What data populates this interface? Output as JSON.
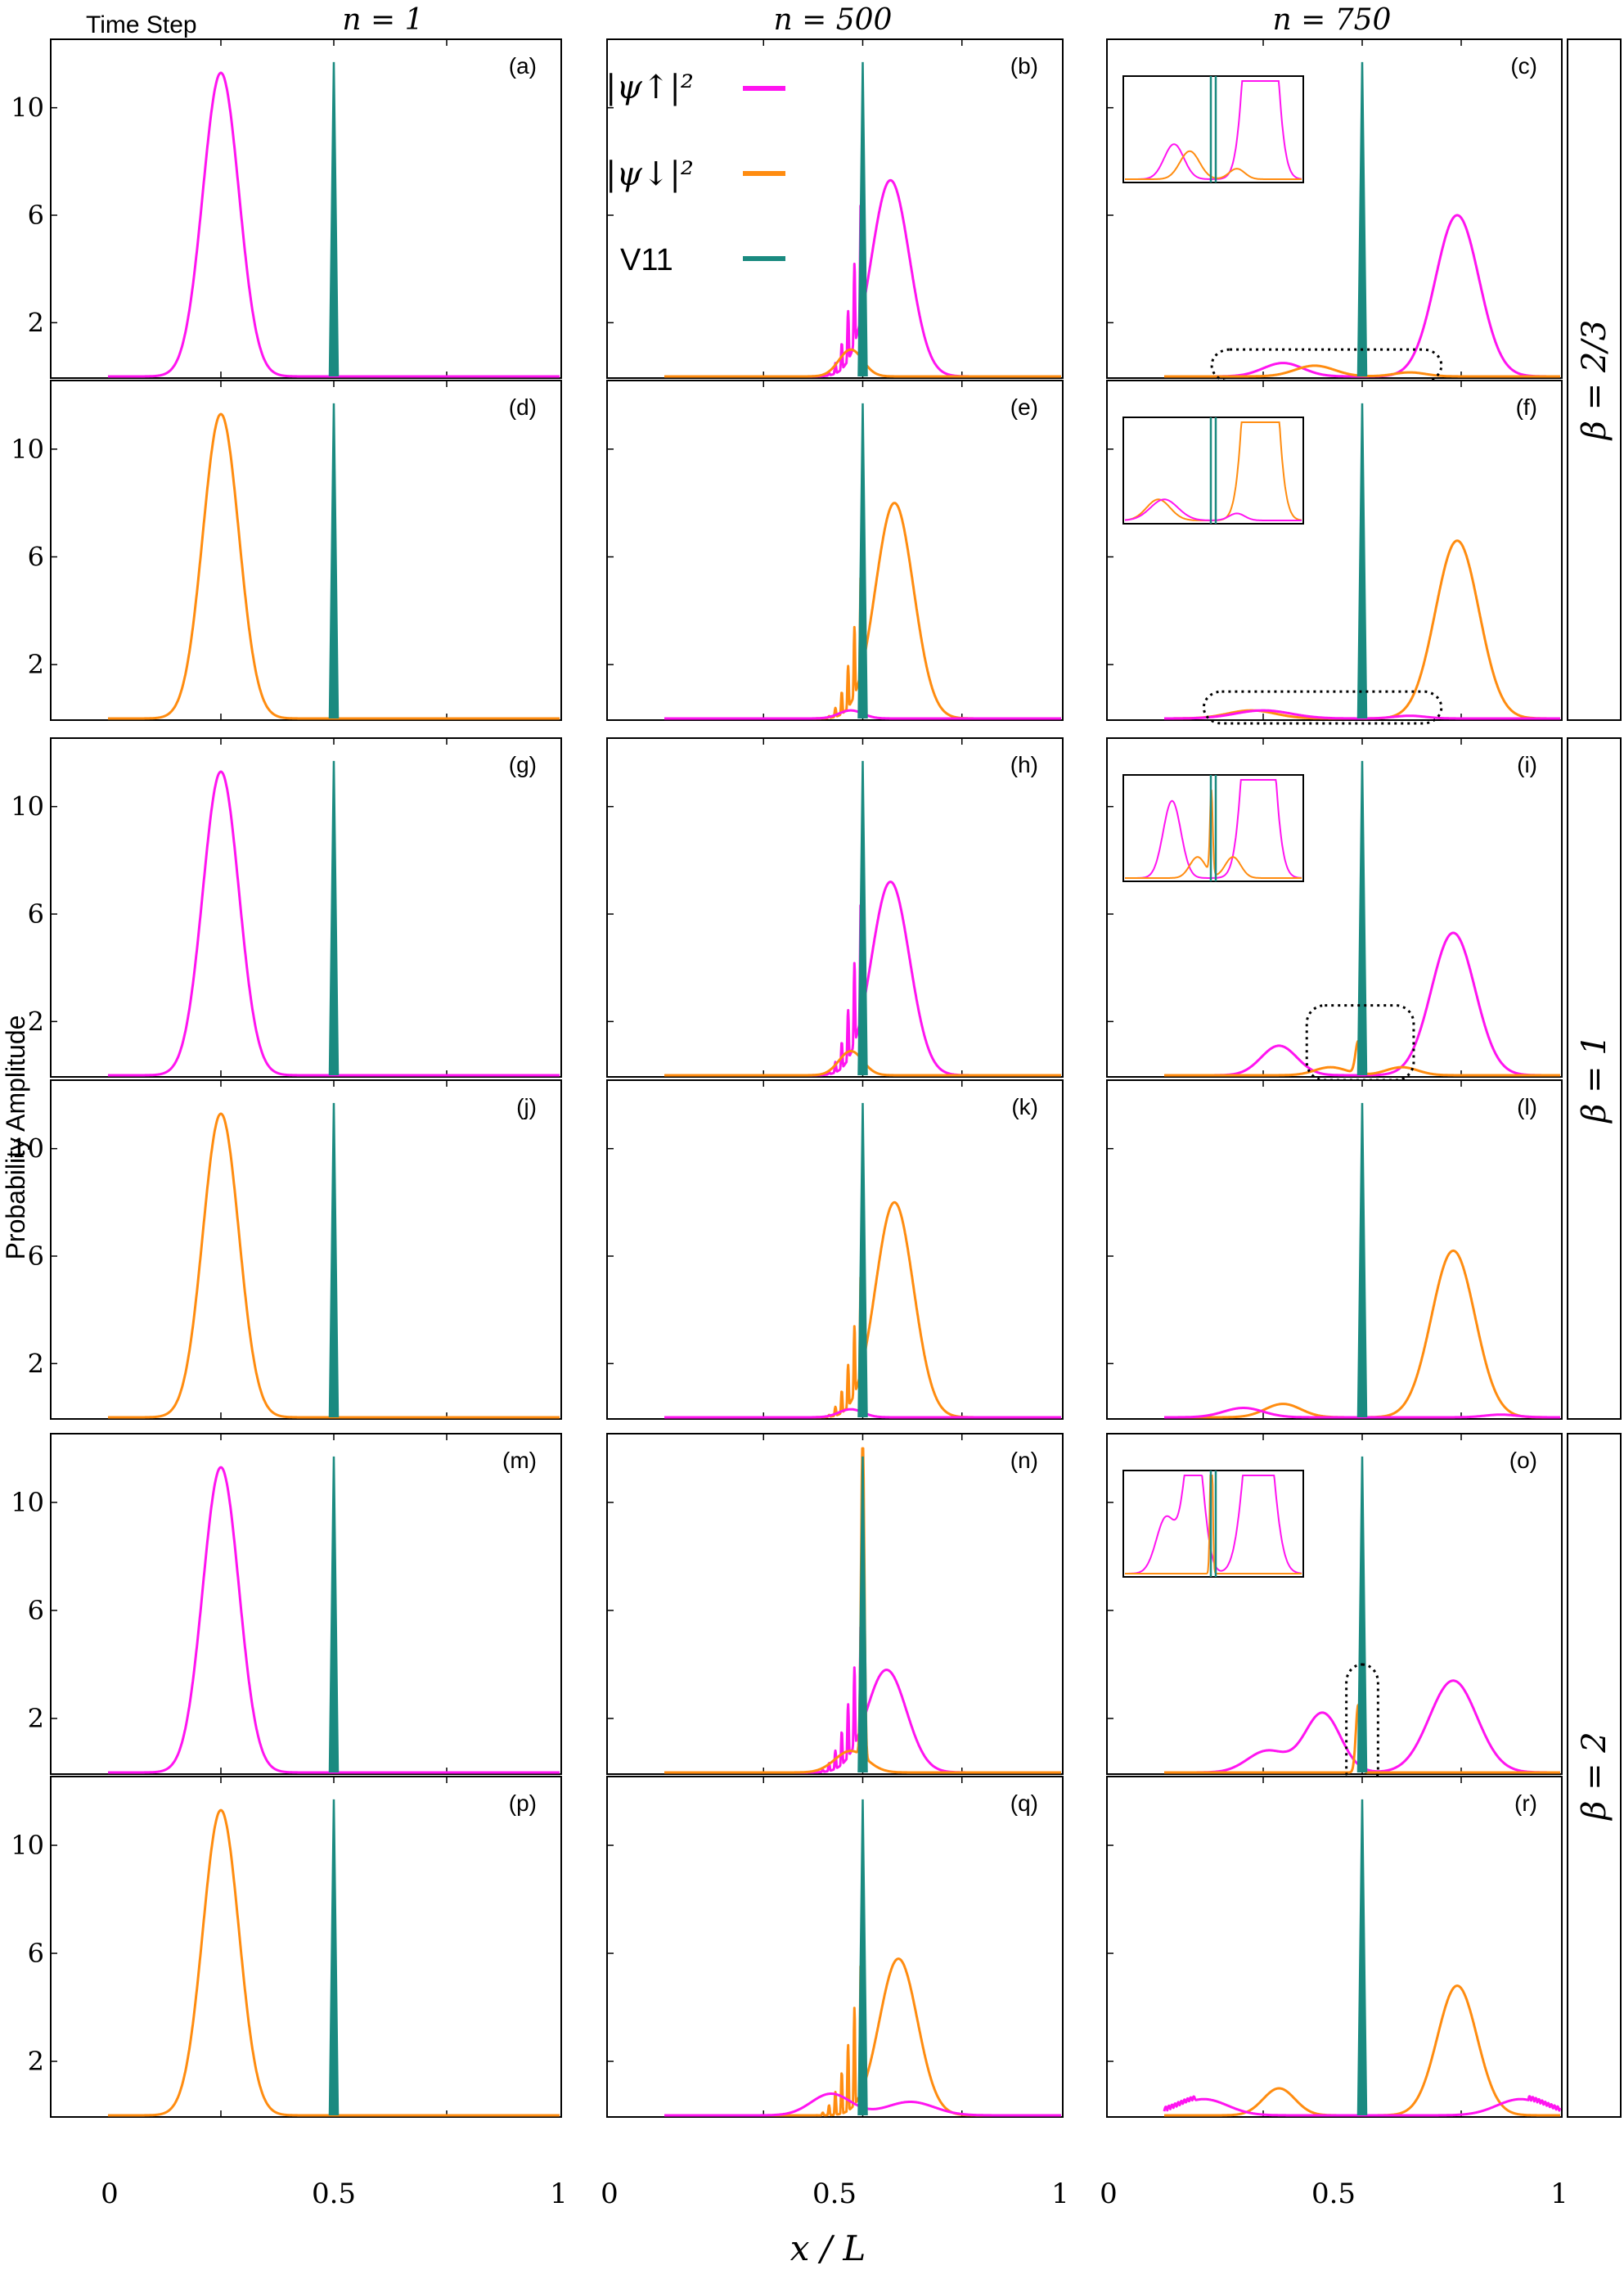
{
  "colors": {
    "up": "#ff14f0",
    "down": "#ff8c10",
    "potential": "#1a8a80",
    "frame": "#000000"
  },
  "header": {
    "time_step_label": "Time Step",
    "col_labels": [
      "n = 1",
      "n = 500",
      "n = 750"
    ]
  },
  "axis": {
    "ylabel": "Probability Amplitude",
    "xlabel": "x / L",
    "xticks": [
      "0",
      "0.5",
      "1"
    ],
    "yticks": [
      "2",
      "6",
      "10"
    ]
  },
  "legend": {
    "up": "|ψ↑|²",
    "down": "|ψ↓|²",
    "potential": "V11"
  },
  "beta_labels": [
    "β = 2/3",
    "β = 1",
    "β = 2"
  ],
  "chart_data": {
    "type": "line",
    "xlim": [
      0,
      1
    ],
    "ylim": [
      0,
      12
    ],
    "grid": false,
    "legend_position": "top-left of panel (b)",
    "potential_V11": {
      "center": 0.5,
      "width": 0.004,
      "height": 11.7
    },
    "panels": [
      {
        "label": "(a)",
        "beta": "2/3",
        "time_step": 1,
        "component": "up",
        "series": [
          {
            "name": "|ψ↑|²",
            "gauss": [
              [
                0.25,
                0.04,
                11.3
              ]
            ]
          }
        ]
      },
      {
        "label": "(b)",
        "beta": "2/3",
        "time_step": 500,
        "component": "up",
        "series": [
          {
            "name": "|ψ↑|²",
            "gauss": [
              [
                0.57,
                0.048,
                7.3
              ]
            ],
            "osc": {
              "from": 0.4,
              "to": 0.495,
              "amp_max": 4.5,
              "period": 0.016
            }
          },
          {
            "name": "|ψ↓|²",
            "gauss": [
              [
                0.47,
                0.03,
                1.0
              ]
            ]
          }
        ]
      },
      {
        "label": "(c)",
        "beta": "2/3",
        "time_step": 750,
        "component": "up",
        "inset": true,
        "highlight": [
          0.12,
          0.7
        ],
        "series": [
          {
            "name": "|ψ↑|²",
            "gauss": [
              [
                0.74,
                0.055,
                6.0
              ],
              [
                0.3,
                0.05,
                0.5
              ]
            ]
          },
          {
            "name": "|ψ↓|²",
            "gauss": [
              [
                0.38,
                0.05,
                0.4
              ],
              [
                0.62,
                0.04,
                0.15
              ]
            ]
          }
        ]
      },
      {
        "label": "(d)",
        "beta": "2/3",
        "time_step": 1,
        "component": "down",
        "series": [
          {
            "name": "|ψ↓|²",
            "gauss": [
              [
                0.25,
                0.04,
                11.3
              ]
            ]
          }
        ]
      },
      {
        "label": "(e)",
        "beta": "2/3",
        "time_step": 500,
        "component": "down",
        "series": [
          {
            "name": "|ψ↓|²",
            "gauss": [
              [
                0.58,
                0.048,
                8.0
              ]
            ],
            "osc": {
              "from": 0.4,
              "to": 0.495,
              "amp_max": 3.8,
              "period": 0.016
            }
          },
          {
            "name": "|ψ↑|²",
            "gauss": [
              [
                0.47,
                0.03,
                0.3
              ]
            ]
          }
        ]
      },
      {
        "label": "(f)",
        "beta": "2/3",
        "time_step": 750,
        "component": "down",
        "inset": true,
        "highlight": [
          0.1,
          0.7
        ],
        "series": [
          {
            "name": "|ψ↓|²",
            "gauss": [
              [
                0.74,
                0.055,
                6.6
              ],
              [
                0.22,
                0.06,
                0.3
              ]
            ]
          },
          {
            "name": "|ψ↑|²",
            "gauss": [
              [
                0.25,
                0.07,
                0.3
              ],
              [
                0.62,
                0.04,
                0.1
              ]
            ]
          }
        ]
      },
      {
        "label": "(g)",
        "beta": "1",
        "time_step": 1,
        "component": "up",
        "series": [
          {
            "name": "|ψ↑|²",
            "gauss": [
              [
                0.25,
                0.04,
                11.3
              ]
            ]
          }
        ]
      },
      {
        "label": "(h)",
        "beta": "1",
        "time_step": 500,
        "component": "up",
        "series": [
          {
            "name": "|ψ↑|²",
            "gauss": [
              [
                0.57,
                0.048,
                7.2
              ]
            ],
            "osc": {
              "from": 0.4,
              "to": 0.495,
              "amp_max": 4.5,
              "period": 0.016
            }
          },
          {
            "name": "|ψ↓|²",
            "gauss": [
              [
                0.47,
                0.03,
                0.9
              ]
            ]
          }
        ]
      },
      {
        "label": "(i)",
        "beta": "1",
        "time_step": 750,
        "component": "up",
        "inset": true,
        "highlight": [
          0.36,
          0.63
        ],
        "series": [
          {
            "name": "|ψ↑|²",
            "gauss": [
              [
                0.73,
                0.055,
                5.3
              ],
              [
                0.29,
                0.045,
                1.1
              ]
            ]
          },
          {
            "name": "|ψ↓|²",
            "gauss": [
              [
                0.42,
                0.04,
                0.3
              ],
              [
                0.49,
                0.007,
                1.2
              ],
              [
                0.6,
                0.04,
                0.3
              ]
            ]
          }
        ]
      },
      {
        "label": "(j)",
        "beta": "1",
        "time_step": 1,
        "component": "down",
        "series": [
          {
            "name": "|ψ↓|²",
            "gauss": [
              [
                0.25,
                0.04,
                11.3
              ]
            ]
          }
        ]
      },
      {
        "label": "(k)",
        "beta": "1",
        "time_step": 500,
        "component": "down",
        "series": [
          {
            "name": "|ψ↓|²",
            "gauss": [
              [
                0.58,
                0.048,
                8.0
              ]
            ],
            "osc": {
              "from": 0.4,
              "to": 0.495,
              "amp_max": 3.8,
              "period": 0.016
            }
          },
          {
            "name": "|ψ↑|²",
            "gauss": [
              [
                0.47,
                0.03,
                0.3
              ]
            ]
          }
        ]
      },
      {
        "label": "(l)",
        "beta": "1",
        "time_step": 750,
        "component": "down",
        "series": [
          {
            "name": "|ψ↓|²",
            "gauss": [
              [
                0.73,
                0.055,
                6.2
              ],
              [
                0.3,
                0.045,
                0.5
              ]
            ]
          },
          {
            "name": "|ψ↑|²",
            "gauss": [
              [
                0.2,
                0.05,
                0.35
              ],
              [
                0.85,
                0.04,
                0.1
              ]
            ]
          }
        ]
      },
      {
        "label": "(m)",
        "beta": "2",
        "time_step": 1,
        "component": "up",
        "series": [
          {
            "name": "|ψ↑|²",
            "gauss": [
              [
                0.25,
                0.04,
                11.3
              ]
            ]
          }
        ]
      },
      {
        "label": "(n)",
        "beta": "2",
        "time_step": 500,
        "component": "up",
        "series": [
          {
            "name": "|ψ↑|²",
            "gauss": [
              [
                0.56,
                0.05,
                3.8
              ]
            ],
            "osc": {
              "from": 0.38,
              "to": 0.495,
              "amp_max": 4.0,
              "period": 0.016
            }
          },
          {
            "name": "|ψ↓|²",
            "gauss": [
              [
                0.5,
                0.004,
                12.0
              ],
              [
                0.47,
                0.04,
                0.8
              ]
            ]
          }
        ]
      },
      {
        "label": "(o)",
        "beta": "2",
        "time_step": 750,
        "component": "up",
        "inset": true,
        "highlight": [
          0.46,
          0.54
        ],
        "series": [
          {
            "name": "|ψ↑|²",
            "gauss": [
              [
                0.73,
                0.06,
                3.4
              ],
              [
                0.4,
                0.045,
                2.2
              ],
              [
                0.26,
                0.05,
                0.8
              ]
            ]
          },
          {
            "name": "|ψ↓|²",
            "gauss": [
              [
                0.49,
                0.006,
                2.5
              ]
            ]
          }
        ]
      },
      {
        "label": "(p)",
        "beta": "2",
        "time_step": 1,
        "component": "down",
        "series": [
          {
            "name": "|ψ↓|²",
            "gauss": [
              [
                0.25,
                0.04,
                11.3
              ]
            ]
          }
        ]
      },
      {
        "label": "(q)",
        "beta": "2",
        "time_step": 500,
        "component": "down",
        "series": [
          {
            "name": "|ψ↓|²",
            "gauss": [
              [
                0.59,
                0.048,
                5.8
              ]
            ],
            "osc": {
              "from": 0.38,
              "to": 0.495,
              "amp_max": 5.0,
              "period": 0.016
            }
          },
          {
            "name": "|ψ↑|²",
            "gauss": [
              [
                0.42,
                0.05,
                0.8
              ],
              [
                0.62,
                0.06,
                0.5
              ]
            ]
          }
        ]
      },
      {
        "label": "(r)",
        "beta": "2",
        "time_step": 750,
        "component": "down",
        "series": [
          {
            "name": "|ψ↓|²",
            "gauss": [
              [
                0.74,
                0.05,
                4.8
              ],
              [
                0.29,
                0.04,
                1.0
              ]
            ]
          },
          {
            "name": "|ψ↑|²",
            "gauss": [
              [
                0.1,
                0.06,
                0.6
              ],
              [
                0.9,
                0.06,
                0.6
              ]
            ],
            "wiggle_edges": true
          }
        ]
      }
    ]
  }
}
